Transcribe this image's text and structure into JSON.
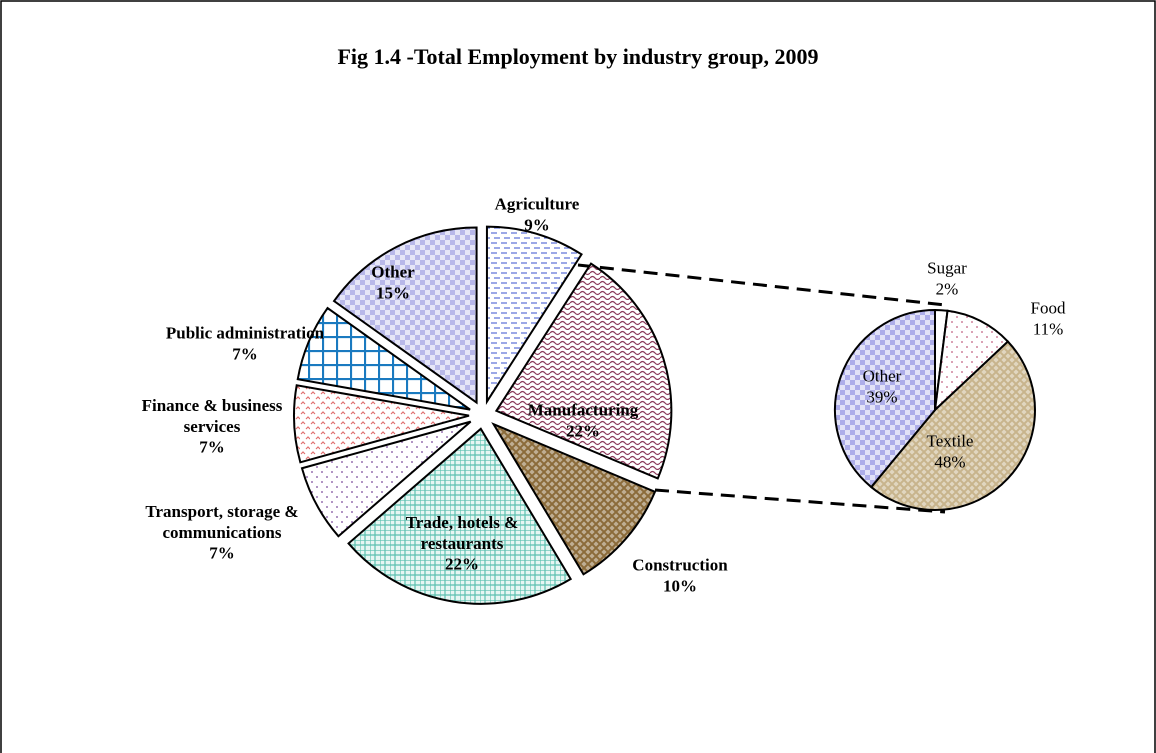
{
  "chart_data": [
    {
      "type": "pie",
      "title": "Fig 1.4 -Total Employment by industry group, 2009",
      "categories": [
        "Agriculture",
        "Manufacturing",
        "Construction",
        "Trade, hotels & restaurants",
        "Transport, storage & communications",
        "Finance & business services",
        "Public administration",
        "Other"
      ],
      "values": [
        9,
        22,
        10,
        22,
        7,
        7,
        7,
        15
      ],
      "value_labels": [
        "9%",
        "22%",
        "10%",
        "22%",
        "7%",
        "7%",
        "7%",
        "15%"
      ],
      "colors": [
        "#5b6fd6",
        "#8b3a5a",
        "#8b6b3a",
        "#5cc0b0",
        "#7a4a9a",
        "#e07070",
        "#1a7ac0",
        "#9a9ae0"
      ]
    },
    {
      "type": "pie",
      "categories": [
        "Sugar",
        "Food",
        "Textile",
        "Other"
      ],
      "values": [
        2,
        11,
        48,
        39
      ],
      "value_labels": [
        "2%",
        "11%",
        "48%",
        "39%"
      ],
      "colors": [
        "#444444",
        "#c06080",
        "#c8b48c",
        "#8a8ae0"
      ]
    }
  ]
}
